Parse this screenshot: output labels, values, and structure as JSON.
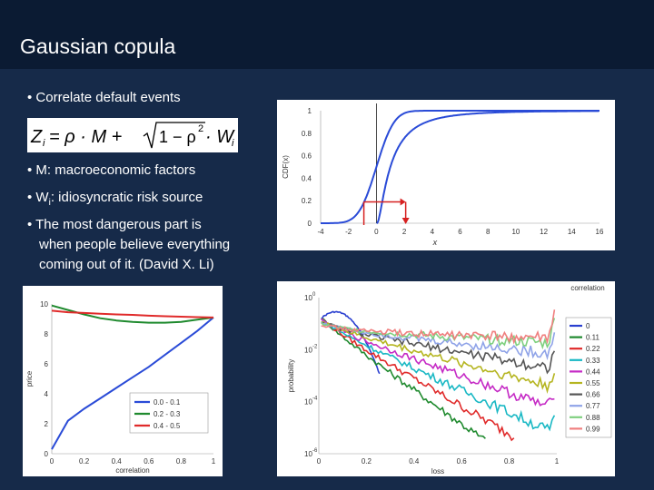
{
  "slide": {
    "title": "Gaussian copula",
    "bullets": [
      "• Correlate default events",
      "• M: macroeconomic factors",
      "• W",
      "i",
      ": idiosyncratic risk source",
      "• The most dangerous part is",
      "when people believe everything",
      "coming out of it.  (David X. Li)"
    ],
    "formula": {
      "lhs": "Z",
      "sub": "i",
      "eq": " = ρ · M + ",
      "rad": "1 − ρ",
      "sq": "2",
      "tail": " · W"
    }
  },
  "chart_data": [
    {
      "type": "line",
      "xlabel": "x",
      "ylabel": "CDF(x)",
      "xlim": [
        -4,
        16
      ],
      "ylim": [
        0,
        1
      ],
      "xticks": [
        "-4",
        "-2",
        "0",
        "2",
        "4",
        "6",
        "8",
        "10",
        "12",
        "14",
        "16"
      ],
      "yticks": [
        "0",
        "0.2",
        "0.4",
        "0.6",
        "0.8",
        "1"
      ],
      "series": [
        {
          "kind": "normal-cdf",
          "mean": 0,
          "sd": 1,
          "color": "#2a4bd7"
        },
        {
          "kind": "lognormal-cdf",
          "shift": 0,
          "scale": 1,
          "color": "#2a4bd7"
        }
      ],
      "annotation": {
        "from_x": -0.9,
        "to_x": 2.1,
        "y": 0.19,
        "color": "#d62020"
      },
      "vline_x": 0
    },
    {
      "type": "line",
      "xlabel": "correlation",
      "ylabel": "price",
      "xlim": [
        0,
        1
      ],
      "ylim": [
        0,
        10
      ],
      "xticks": [
        "0",
        "0.2",
        "0.4",
        "0.6",
        "0.8",
        "1"
      ],
      "yticks": [
        "0",
        "2",
        "4",
        "6",
        "8",
        "10"
      ],
      "legend": "bottom-right",
      "series": [
        {
          "name": "0.0 - 0.1",
          "color": "#2a4bd7",
          "x": [
            0,
            0.1,
            0.2,
            0.3,
            0.4,
            0.5,
            0.6,
            0.7,
            0.8,
            0.9,
            1
          ],
          "values": [
            0.3,
            2.2,
            3.0,
            3.7,
            4.4,
            5.1,
            5.8,
            6.6,
            7.4,
            8.2,
            9.1
          ]
        },
        {
          "name": "0.2 - 0.3",
          "color": "#1f8a2e",
          "x": [
            0,
            0.1,
            0.2,
            0.3,
            0.4,
            0.5,
            0.6,
            0.7,
            0.8,
            0.9,
            1
          ],
          "values": [
            9.9,
            9.6,
            9.3,
            9.05,
            8.9,
            8.8,
            8.75,
            8.75,
            8.8,
            8.95,
            9.1
          ]
        },
        {
          "name": "0.4 - 0.5",
          "color": "#e02a2a",
          "x": [
            0,
            0.1,
            0.2,
            0.3,
            0.4,
            0.5,
            0.6,
            0.7,
            0.8,
            0.9,
            1
          ],
          "values": [
            9.55,
            9.45,
            9.4,
            9.35,
            9.3,
            9.27,
            9.22,
            9.18,
            9.15,
            9.12,
            9.1
          ]
        }
      ]
    },
    {
      "type": "line",
      "xlabel": "loss",
      "ylabel": "probability",
      "legend_title": "correlation",
      "legend": "right",
      "xlim": [
        0,
        1
      ],
      "ylim_log10": [
        -6,
        0
      ],
      "xticks": [
        "0",
        "0.2",
        "0.4",
        "0.6",
        "0.8",
        "1"
      ],
      "series": [
        {
          "name": "0",
          "color": "#2a3fd0"
        },
        {
          "name": "0.11",
          "color": "#1f8a2e"
        },
        {
          "name": "0.22",
          "color": "#e02a2a"
        },
        {
          "name": "0.33",
          "color": "#19b8c4"
        },
        {
          "name": "0.44",
          "color": "#c52ac5"
        },
        {
          "name": "0.55",
          "color": "#b5b520"
        },
        {
          "name": "0.66",
          "color": "#555555"
        },
        {
          "name": "0.77",
          "color": "#8fa3e8"
        },
        {
          "name": "0.88",
          "color": "#7fd07f"
        },
        {
          "name": "0.99",
          "color": "#f07f7f"
        }
      ]
    }
  ]
}
